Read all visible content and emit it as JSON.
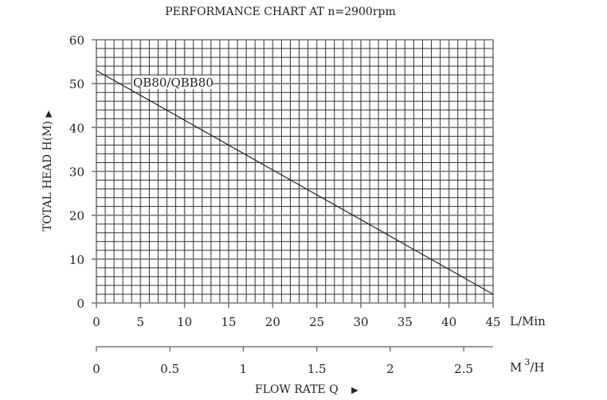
{
  "chart_data": {
    "type": "line",
    "title": "PERFORMANCE CHART AT n=2900rpm",
    "ylabel": "TOTAL  HEAD  H(M)",
    "ylabel_arrow": "▶",
    "xlabel": "FLOW  RATE  Q",
    "xlabel_arrow": "▶",
    "x_unit": "L/Min",
    "x2_unit_base": "M",
    "x2_unit_sup": "3",
    "x2_unit_tail": "/H",
    "xlim": [
      0,
      45
    ],
    "ylim": [
      0,
      60
    ],
    "x_ticks": [
      0,
      5,
      10,
      15,
      20,
      25,
      30,
      35,
      40,
      45
    ],
    "y_ticks": [
      0,
      10,
      20,
      30,
      40,
      50,
      60
    ],
    "x2_ticks": [
      0,
      0.5,
      1,
      1.5,
      2,
      2.5
    ],
    "x2_tick_labels": [
      "0",
      "0.5",
      "1",
      "1.5",
      "2",
      "2.5"
    ],
    "grid": true,
    "grid_x_step": 1,
    "grid_y_step": 2,
    "series": [
      {
        "name": "QB80/QBB80",
        "x": [
          0,
          45
        ],
        "y": [
          53,
          2
        ]
      }
    ]
  }
}
